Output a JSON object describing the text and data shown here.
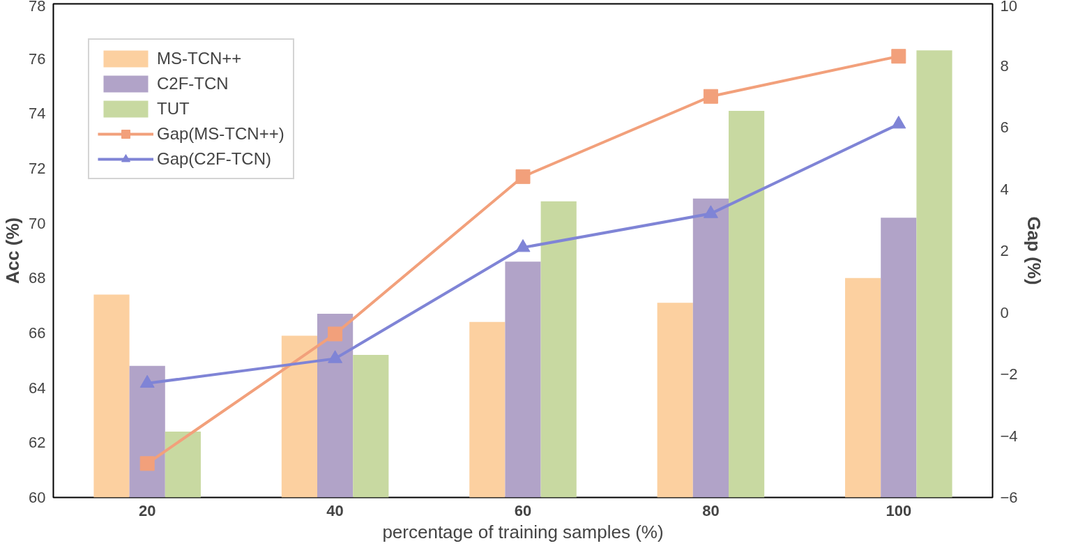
{
  "chart_data": {
    "type": "bar",
    "xlabel": "percentage of training samples (%)",
    "ylabel": "Acc (%)",
    "y2label": "Gap (%)",
    "categories": [
      "20",
      "40",
      "60",
      "80",
      "100"
    ],
    "series": [
      {
        "name": "MS-TCN++",
        "color": "#fcd0a0",
        "values": [
          67.4,
          65.9,
          66.4,
          67.1,
          68.0
        ]
      },
      {
        "name": "C2F-TCN",
        "color": "#b1a3c8",
        "values": [
          64.8,
          66.7,
          68.6,
          70.9,
          70.2
        ]
      },
      {
        "name": "TUT",
        "color": "#c8d9a1",
        "values": [
          62.4,
          65.2,
          70.8,
          74.1,
          76.3
        ]
      },
      {
        "name": "Gap(MS-TCN++)",
        "type": "line",
        "axis": "y2",
        "marker": "square",
        "color": "#f2a07b",
        "values": [
          -4.9,
          -0.7,
          4.4,
          7.0,
          8.3
        ]
      },
      {
        "name": "Gap(C2F-TCN)",
        "type": "line",
        "axis": "y2",
        "marker": "triangle",
        "color": "#7f84d6",
        "values": [
          -2.3,
          -1.5,
          2.1,
          3.2,
          6.1
        ]
      }
    ],
    "ylim": [
      60,
      78
    ],
    "yticks": [
      60,
      62,
      64,
      66,
      68,
      70,
      72,
      74,
      76,
      78
    ],
    "y2lim": [
      -6,
      10
    ],
    "y2ticks": [
      -6,
      -4,
      -2,
      0,
      2,
      4,
      6,
      8,
      10
    ],
    "legend": "top left",
    "grid": false,
    "line_style": "solid"
  }
}
